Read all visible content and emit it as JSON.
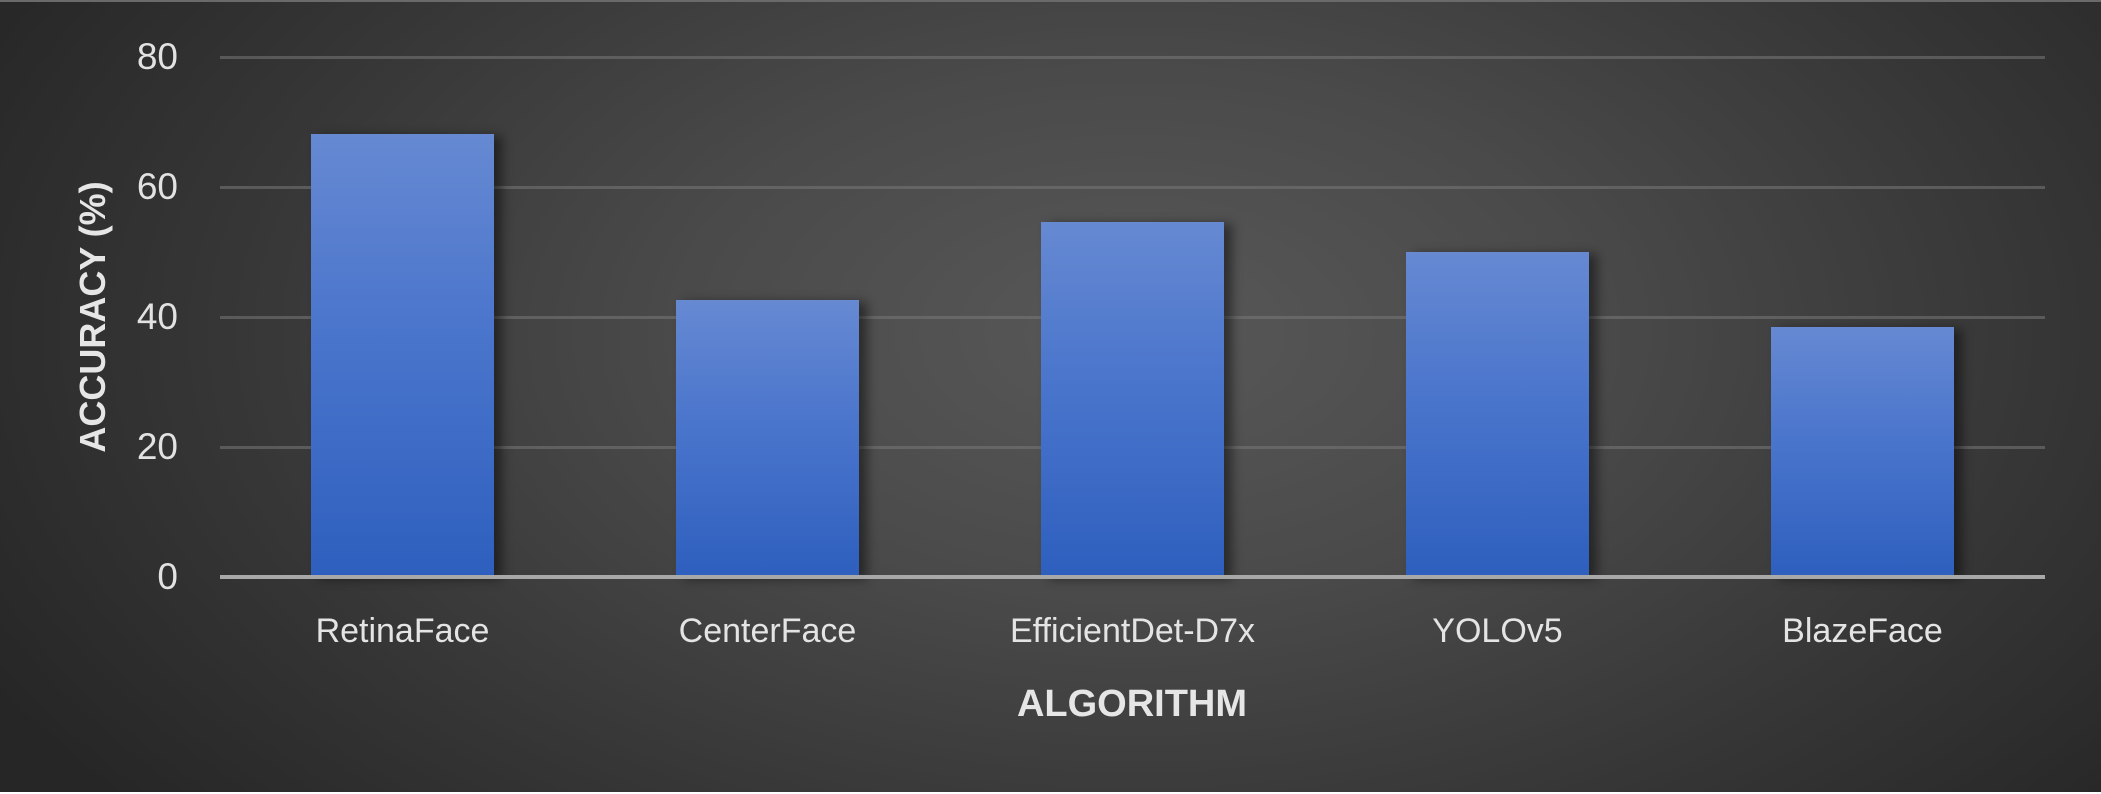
{
  "chart_data": {
    "type": "bar",
    "title": "",
    "xlabel": "ALGORITHM",
    "ylabel": "ACCURACY (%)",
    "categories": [
      "RetinaFace",
      "CenterFace",
      "EfficientDet-D7x",
      "YOLOv5",
      "BlazeFace"
    ],
    "values": [
      68.2,
      42.6,
      54.6,
      50.0,
      38.5
    ],
    "ylim": [
      0,
      80
    ],
    "yticks": [
      "0",
      "20",
      "40",
      "60",
      "80"
    ],
    "grid": true,
    "legend": null,
    "colors": {
      "bar_top": "#6689d2",
      "bar_bottom": "#2e5fbe",
      "background_center": "#585858",
      "background_edge": "#262626",
      "text": "#e4e4e4"
    }
  }
}
